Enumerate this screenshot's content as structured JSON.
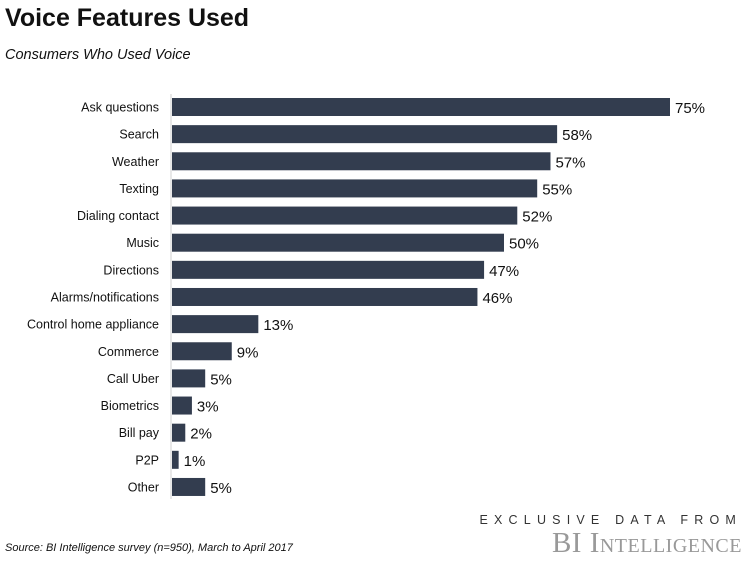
{
  "chart_data": {
    "type": "bar",
    "orientation": "horizontal",
    "title": "Voice Features Used",
    "subtitle": "Consumers Who Used Voice",
    "categories": [
      "Ask questions",
      "Search",
      "Weather",
      "Texting",
      "Dialing contact",
      "Music",
      "Directions",
      "Alarms/notifications",
      "Control home appliance",
      "Commerce",
      "Call Uber",
      "Biometrics",
      "Bill pay",
      "P2P",
      "Other"
    ],
    "values": [
      75,
      58,
      57,
      55,
      52,
      50,
      47,
      46,
      13,
      9,
      5,
      3,
      2,
      1,
      5
    ],
    "value_labels": [
      "75%",
      "58%",
      "57%",
      "55%",
      "52%",
      "50%",
      "47%",
      "46%",
      "13%",
      "9%",
      "5%",
      "3%",
      "2%",
      "1%",
      "5%"
    ],
    "xlim": [
      0,
      75
    ],
    "bar_color": "#333d4f",
    "grid": false
  },
  "footer": {
    "source": "Source: BI Intelligence survey (n=950), March to April 2017",
    "exclusive": "EXCLUSIVE DATA FROM",
    "brand": "BI Intelligence"
  }
}
